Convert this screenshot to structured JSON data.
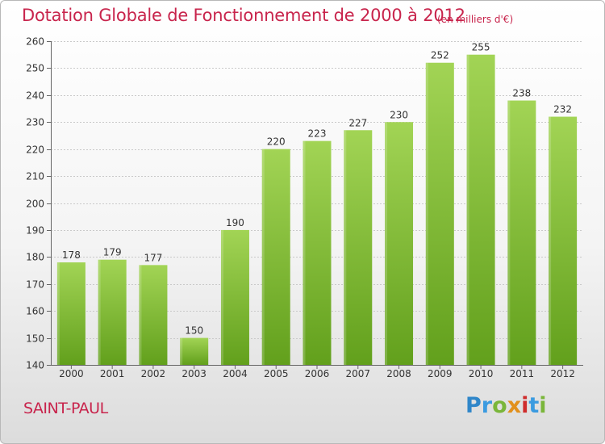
{
  "header": {
    "title": "Dotation Globale de Fonctionnement de 2000 à 2012",
    "subtitle": "(en milliers d'€)"
  },
  "footer": {
    "commune": "SAINT-PAUL",
    "logo_letters": [
      "P",
      "r",
      "o",
      "x",
      "i",
      "t",
      "i"
    ]
  },
  "colors": {
    "title": "#c8244c",
    "bar_top": "#a2d455",
    "bar_bottom": "#62a01c",
    "grid": "#c9c9c9"
  },
  "chart_data": {
    "type": "bar",
    "title": "Dotation Globale de Fonctionnement de 2000 à 2012",
    "subtitle": "(en milliers d'€)",
    "categories": [
      "2000",
      "2001",
      "2002",
      "2003",
      "2004",
      "2005",
      "2006",
      "2007",
      "2008",
      "2009",
      "2010",
      "2011",
      "2012"
    ],
    "values": [
      178,
      179,
      177,
      150,
      190,
      220,
      223,
      227,
      230,
      252,
      255,
      238,
      232
    ],
    "xlabel": "",
    "ylabel": "",
    "ylim": [
      140,
      260
    ],
    "yticks": [
      140,
      150,
      160,
      170,
      180,
      190,
      200,
      210,
      220,
      230,
      240,
      250,
      260
    ],
    "grid": true,
    "legend": "none"
  }
}
